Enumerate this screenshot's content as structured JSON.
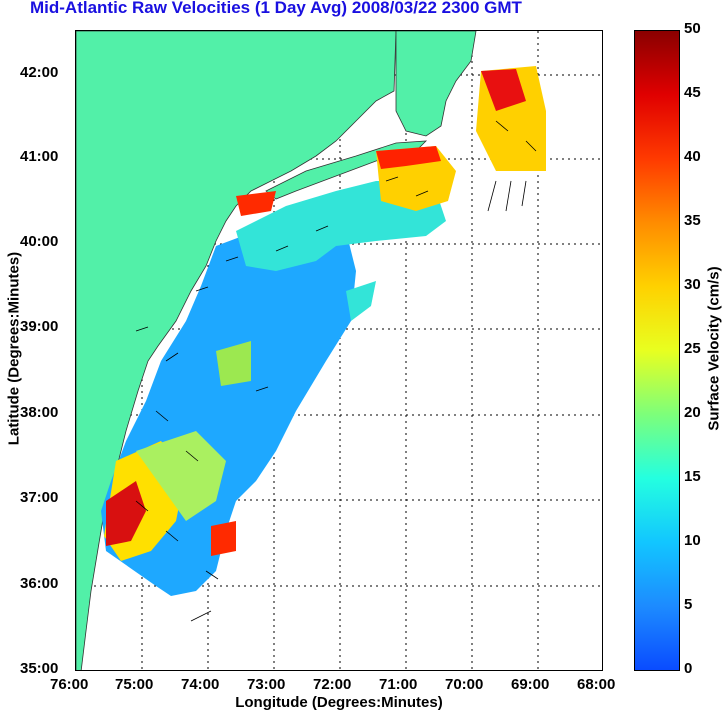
{
  "title": "Mid-Atlantic Raw Velocities (1 Day Avg) 2008/03/22 2300 GMT",
  "axes": {
    "xlabel": "Longitude (Degrees:Minutes)",
    "ylabel": "Latitude (Degrees:Minutes)",
    "x_ticks": [
      "76:00",
      "75:00",
      "74:00",
      "73:00",
      "72:00",
      "71:00",
      "70:00",
      "69:00",
      "68:00"
    ],
    "y_ticks": [
      "42:00",
      "41:00",
      "40:00",
      "39:00",
      "38:00",
      "37:00",
      "36:00",
      "35:00"
    ]
  },
  "colorbar": {
    "label": "Surface Velocity (cm/s)",
    "ticks": [
      "50",
      "45",
      "40",
      "35",
      "30",
      "25",
      "20",
      "15",
      "10",
      "5",
      "0"
    ],
    "range": [
      0,
      50
    ]
  },
  "colors": {
    "land": "#52f0a8",
    "title": "#1a10e0"
  }
}
